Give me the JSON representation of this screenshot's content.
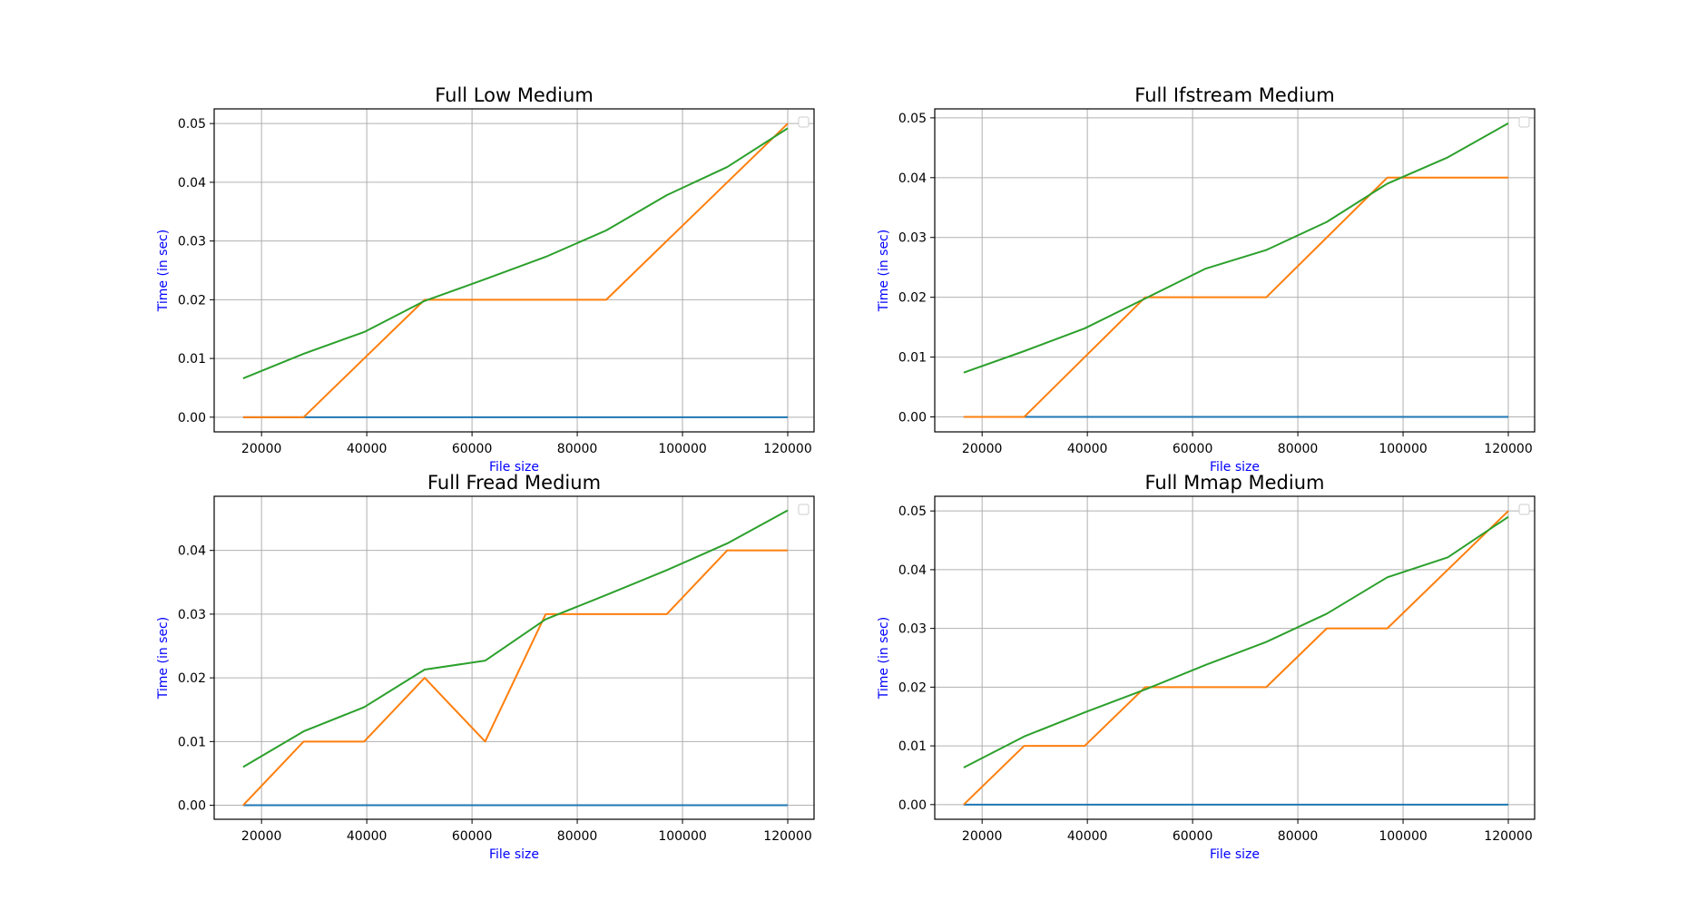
{
  "chart_data": [
    {
      "type": "line",
      "title": "Full Low Medium",
      "xlabel": "File size",
      "ylabel": "Time (in sec)",
      "xlim": [
        11000,
        125000
      ],
      "ylim": [
        -0.0025,
        0.0525
      ],
      "xticks": [
        20000,
        40000,
        60000,
        80000,
        100000,
        120000
      ],
      "yticks": [
        0.0,
        0.01,
        0.02,
        0.03,
        0.04,
        0.05
      ],
      "xtick_labels": [
        "20000",
        "40000",
        "60000",
        "80000",
        "100000",
        "120000"
      ],
      "ytick_labels": [
        "0.00",
        "0.01",
        "0.02",
        "0.03",
        "0.04",
        "0.05"
      ],
      "grid": true,
      "legend": "top-right (empty)",
      "x": [
        16500,
        28000,
        39500,
        51000,
        62500,
        74000,
        85500,
        97000,
        108500,
        120000
      ],
      "series": [
        {
          "color": "#1f77b4",
          "values": [
            0,
            0,
            0,
            0,
            0,
            0,
            0,
            0,
            0,
            0
          ]
        },
        {
          "color": "#ff7f0e",
          "values": [
            0,
            0,
            0.01,
            0.02,
            0.02,
            0.02,
            0.02,
            0.03,
            0.04,
            0.05
          ]
        },
        {
          "color": "#2ca02c",
          "values": [
            0.0066,
            0.0108,
            0.0145,
            0.0198,
            0.0235,
            0.0273,
            0.0318,
            0.0378,
            0.0426,
            0.0492
          ]
        }
      ]
    },
    {
      "type": "line",
      "title": "Full Ifstream Medium",
      "xlabel": "File size",
      "ylabel": "Time (in sec)",
      "xlim": [
        11000,
        125000
      ],
      "ylim": [
        -0.0025,
        0.0515
      ],
      "xticks": [
        20000,
        40000,
        60000,
        80000,
        100000,
        120000
      ],
      "yticks": [
        0.0,
        0.01,
        0.02,
        0.03,
        0.04,
        0.05
      ],
      "xtick_labels": [
        "20000",
        "40000",
        "60000",
        "80000",
        "100000",
        "120000"
      ],
      "ytick_labels": [
        "0.00",
        "0.01",
        "0.02",
        "0.03",
        "0.04",
        "0.05"
      ],
      "grid": true,
      "legend": "top-right (empty)",
      "x": [
        16500,
        28000,
        39500,
        51000,
        62500,
        74000,
        85500,
        97000,
        108500,
        120000
      ],
      "series": [
        {
          "color": "#1f77b4",
          "values": [
            0,
            0,
            0,
            0,
            0,
            0,
            0,
            0,
            0,
            0
          ]
        },
        {
          "color": "#ff7f0e",
          "values": [
            0,
            0,
            0.01,
            0.02,
            0.02,
            0.02,
            0.03,
            0.04,
            0.04,
            0.04
          ]
        },
        {
          "color": "#2ca02c",
          "values": [
            0.0074,
            0.011,
            0.0148,
            0.0198,
            0.0248,
            0.0279,
            0.0326,
            0.039,
            0.0434,
            0.0491
          ]
        }
      ]
    },
    {
      "type": "line",
      "title": "Full Fread Medium",
      "xlabel": "File size",
      "ylabel": "Time (in sec)",
      "xlim": [
        11000,
        125000
      ],
      "ylim": [
        -0.0022,
        0.0485
      ],
      "xticks": [
        20000,
        40000,
        60000,
        80000,
        100000,
        120000
      ],
      "yticks": [
        0.0,
        0.01,
        0.02,
        0.03,
        0.04
      ],
      "xtick_labels": [
        "20000",
        "40000",
        "60000",
        "80000",
        "100000",
        "120000"
      ],
      "ytick_labels": [
        "0.00",
        "0.01",
        "0.02",
        "0.03",
        "0.04"
      ],
      "grid": true,
      "legend": "top-right (empty)",
      "x": [
        16500,
        28000,
        39500,
        51000,
        62500,
        74000,
        85500,
        97000,
        108500,
        120000
      ],
      "series": [
        {
          "color": "#1f77b4",
          "values": [
            0,
            0,
            0,
            0,
            0,
            0,
            0,
            0,
            0,
            0
          ]
        },
        {
          "color": "#ff7f0e",
          "values": [
            0,
            0.01,
            0.01,
            0.02,
            0.01,
            0.03,
            0.03,
            0.03,
            0.04,
            0.04
          ]
        },
        {
          "color": "#2ca02c",
          "values": [
            0.006,
            0.0116,
            0.0154,
            0.0213,
            0.0227,
            0.0292,
            0.033,
            0.0369,
            0.0411,
            0.0463
          ]
        }
      ]
    },
    {
      "type": "line",
      "title": "Full Mmap Medium",
      "xlabel": "File size",
      "ylabel": "Time (in sec)",
      "xlim": [
        11000,
        125000
      ],
      "ylim": [
        -0.0025,
        0.0525
      ],
      "xticks": [
        20000,
        40000,
        60000,
        80000,
        100000,
        120000
      ],
      "yticks": [
        0.0,
        0.01,
        0.02,
        0.03,
        0.04,
        0.05
      ],
      "xtick_labels": [
        "20000",
        "40000",
        "60000",
        "80000",
        "100000",
        "120000"
      ],
      "ytick_labels": [
        "0.00",
        "0.01",
        "0.02",
        "0.03",
        "0.04",
        "0.05"
      ],
      "grid": true,
      "legend": "top-right (empty)",
      "x": [
        16500,
        28000,
        39500,
        51000,
        62500,
        74000,
        85500,
        97000,
        108500,
        120000
      ],
      "series": [
        {
          "color": "#1f77b4",
          "values": [
            0,
            0,
            0,
            0,
            0,
            0,
            0,
            0,
            0,
            0
          ]
        },
        {
          "color": "#ff7f0e",
          "values": [
            0,
            0.01,
            0.01,
            0.02,
            0.02,
            0.02,
            0.03,
            0.03,
            0.04,
            0.05
          ]
        },
        {
          "color": "#2ca02c",
          "values": [
            0.0063,
            0.0116,
            0.0157,
            0.0196,
            0.0238,
            0.0277,
            0.0325,
            0.0387,
            0.0421,
            0.049
          ]
        }
      ]
    }
  ]
}
